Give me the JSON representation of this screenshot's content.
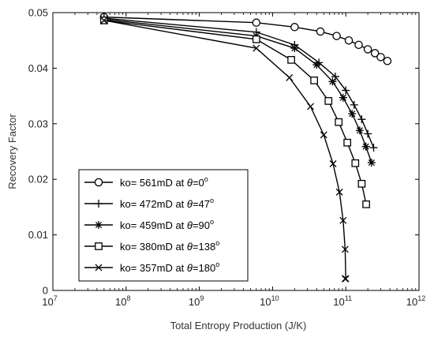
{
  "chart_data": {
    "type": "line",
    "xlabel": "Total Entropy Production (J/K)",
    "ylabel": "Recovery Factor",
    "xscale": "log",
    "xlim": [
      10000000,
      1000000000000
    ],
    "ylim": [
      0,
      0.05
    ],
    "x_tick_labels": [
      {
        "base": "10",
        "exp": "7",
        "value": 10000000
      },
      {
        "base": "10",
        "exp": "8",
        "value": 100000000
      },
      {
        "base": "10",
        "exp": "9",
        "value": 1000000000
      },
      {
        "base": "10",
        "exp": "10",
        "value": 10000000000
      },
      {
        "base": "10",
        "exp": "11",
        "value": 100000000000
      },
      {
        "base": "10",
        "exp": "12",
        "value": 1000000000000
      }
    ],
    "y_tick_labels": [
      "0",
      "0.01",
      "0.02",
      "0.03",
      "0.04",
      "0.05"
    ],
    "y_ticks": [
      0,
      0.01,
      0.02,
      0.03,
      0.04,
      0.05
    ],
    "grid": false,
    "legend_position": "bottom-left",
    "series": [
      {
        "name": "ko= 561mD at θ=0°",
        "label_prefix": "ko= 561mD at ",
        "label_theta": "θ",
        "label_value": "=0",
        "label_degree": "o",
        "marker": "circle",
        "x": [
          50000000,
          6000000000,
          20000000000,
          45000000000,
          75000000000,
          110000000000,
          150000000000,
          200000000000,
          250000000000,
          300000000000,
          370000000000
        ],
        "y": [
          0.0492,
          0.0482,
          0.0474,
          0.0466,
          0.0458,
          0.045,
          0.0442,
          0.0434,
          0.0427,
          0.042,
          0.0413
        ]
      },
      {
        "name": "ko= 472mD at θ=47°",
        "label_prefix": "ko= 472mD at ",
        "label_theta": "θ",
        "label_value": "=47",
        "label_degree": "o",
        "marker": "plus",
        "x": [
          50000000,
          6000000000,
          20000000000,
          43000000000,
          72000000000,
          100000000000,
          130000000000,
          165000000000,
          200000000000,
          240000000000
        ],
        "y": [
          0.049,
          0.0465,
          0.0442,
          0.041,
          0.0385,
          0.036,
          0.0334,
          0.0308,
          0.0282,
          0.0257
        ]
      },
      {
        "name": "ko= 459mD at θ=90°",
        "label_prefix": "ko= 459mD at ",
        "label_theta": "θ",
        "label_value": "=90",
        "label_degree": "o",
        "marker": "asterisk",
        "x": [
          50000000,
          6000000000,
          20000000000,
          40000000000,
          66000000000,
          92000000000,
          122000000000,
          155000000000,
          188000000000,
          225000000000
        ],
        "y": [
          0.0488,
          0.0458,
          0.0436,
          0.0406,
          0.0376,
          0.0347,
          0.0318,
          0.0288,
          0.0259,
          0.023
        ]
      },
      {
        "name": "ko= 380mD at θ=138°",
        "label_prefix": "ko= 380mD at ",
        "label_theta": "θ",
        "label_value": "=138",
        "label_degree": "o",
        "marker": "square",
        "x": [
          50000000,
          6000000000,
          18000000000,
          37000000000,
          58000000000,
          80000000000,
          105000000000,
          135000000000,
          165000000000,
          190000000000
        ],
        "y": [
          0.0486,
          0.0452,
          0.0415,
          0.0378,
          0.0341,
          0.0303,
          0.0266,
          0.0229,
          0.0192,
          0.0155
        ]
      },
      {
        "name": "ko= 357mD at θ=180°",
        "label_prefix": "ko= 357mD at ",
        "label_theta": "θ",
        "label_value": "=180",
        "label_degree": "o",
        "marker": "x",
        "x": [
          50000000,
          6000000000,
          17000000000,
          33000000000,
          50000000000,
          67000000000,
          82000000000,
          92000000000,
          98000000000,
          100000000000,
          98000000000
        ],
        "y": [
          0.0486,
          0.0436,
          0.0383,
          0.0331,
          0.028,
          0.0228,
          0.0177,
          0.0126,
          0.0074,
          0.0021,
          0.0021
        ]
      }
    ]
  }
}
